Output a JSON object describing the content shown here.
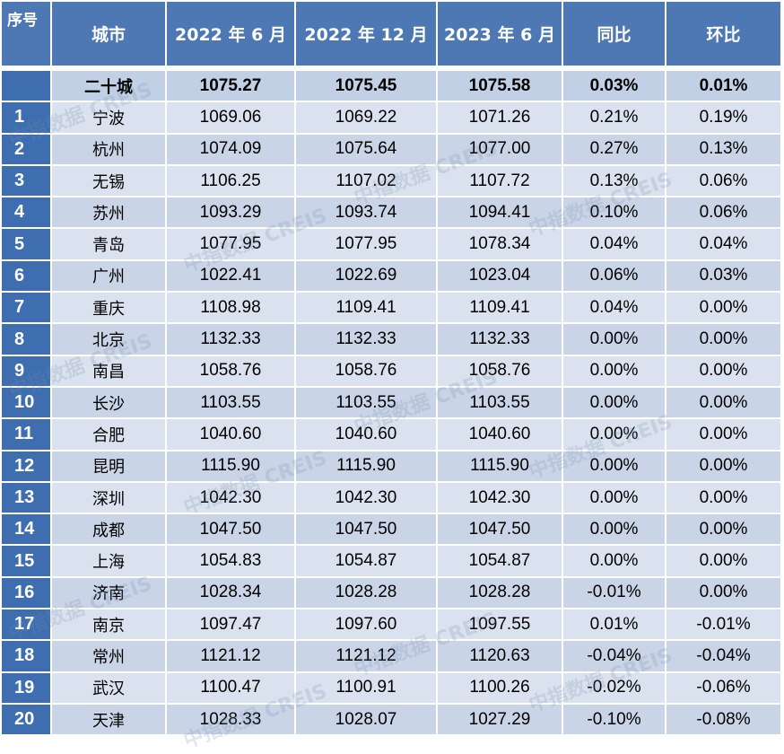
{
  "headers": [
    "序号",
    "城市",
    "2022 年 6 月",
    "2022 年 12 月",
    "2023 年 6 月",
    "同比",
    "环比"
  ],
  "total": {
    "index": "",
    "city": "二十城",
    "v1": "1075.27",
    "v2": "1075.45",
    "v3": "1075.58",
    "yoy": "0.03%",
    "mom": "0.01%"
  },
  "rows": [
    {
      "index": "1",
      "city": "宁波",
      "v1": "1069.06",
      "v2": "1069.22",
      "v3": "1071.26",
      "yoy": "0.21%",
      "mom": "0.19%"
    },
    {
      "index": "2",
      "city": "杭州",
      "v1": "1074.09",
      "v2": "1075.64",
      "v3": "1077.00",
      "yoy": "0.27%",
      "mom": "0.13%"
    },
    {
      "index": "3",
      "city": "无锡",
      "v1": "1106.25",
      "v2": "1107.02",
      "v3": "1107.72",
      "yoy": "0.13%",
      "mom": "0.06%"
    },
    {
      "index": "4",
      "city": "苏州",
      "v1": "1093.29",
      "v2": "1093.74",
      "v3": "1094.41",
      "yoy": "0.10%",
      "mom": "0.06%"
    },
    {
      "index": "5",
      "city": "青岛",
      "v1": "1077.95",
      "v2": "1077.95",
      "v3": "1078.34",
      "yoy": "0.04%",
      "mom": "0.04%"
    },
    {
      "index": "6",
      "city": "广州",
      "v1": "1022.41",
      "v2": "1022.69",
      "v3": "1023.04",
      "yoy": "0.06%",
      "mom": "0.03%"
    },
    {
      "index": "7",
      "city": "重庆",
      "v1": "1108.98",
      "v2": "1109.41",
      "v3": "1109.41",
      "yoy": "0.04%",
      "mom": "0.00%"
    },
    {
      "index": "8",
      "city": "北京",
      "v1": "1132.33",
      "v2": "1132.33",
      "v3": "1132.33",
      "yoy": "0.00%",
      "mom": "0.00%"
    },
    {
      "index": "9",
      "city": "南昌",
      "v1": "1058.76",
      "v2": "1058.76",
      "v3": "1058.76",
      "yoy": "0.00%",
      "mom": "0.00%"
    },
    {
      "index": "10",
      "city": "长沙",
      "v1": "1103.55",
      "v2": "1103.55",
      "v3": "1103.55",
      "yoy": "0.00%",
      "mom": "0.00%"
    },
    {
      "index": "11",
      "city": "合肥",
      "v1": "1040.60",
      "v2": "1040.60",
      "v3": "1040.60",
      "yoy": "0.00%",
      "mom": "0.00%"
    },
    {
      "index": "12",
      "city": "昆明",
      "v1": "1115.90",
      "v2": "1115.90",
      "v3": "1115.90",
      "yoy": "0.00%",
      "mom": "0.00%"
    },
    {
      "index": "13",
      "city": "深圳",
      "v1": "1042.30",
      "v2": "1042.30",
      "v3": "1042.30",
      "yoy": "0.00%",
      "mom": "0.00%"
    },
    {
      "index": "14",
      "city": "成都",
      "v1": "1047.50",
      "v2": "1047.50",
      "v3": "1047.50",
      "yoy": "0.00%",
      "mom": "0.00%"
    },
    {
      "index": "15",
      "city": "上海",
      "v1": "1054.83",
      "v2": "1054.87",
      "v3": "1054.87",
      "yoy": "0.00%",
      "mom": "0.00%"
    },
    {
      "index": "16",
      "city": "济南",
      "v1": "1028.34",
      "v2": "1028.28",
      "v3": "1028.28",
      "yoy": "-0.01%",
      "mom": "0.00%"
    },
    {
      "index": "17",
      "city": "南京",
      "v1": "1097.47",
      "v2": "1097.60",
      "v3": "1097.55",
      "yoy": "0.01%",
      "mom": "-0.01%"
    },
    {
      "index": "18",
      "city": "常州",
      "v1": "1121.12",
      "v2": "1121.12",
      "v3": "1120.63",
      "yoy": "-0.04%",
      "mom": "-0.04%"
    },
    {
      "index": "19",
      "city": "武汉",
      "v1": "1100.47",
      "v2": "1100.91",
      "v3": "1100.26",
      "yoy": "-0.02%",
      "mom": "-0.06%"
    },
    {
      "index": "20",
      "city": "天津",
      "v1": "1028.33",
      "v2": "1028.07",
      "v3": "1027.29",
      "yoy": "-0.10%",
      "mom": "-0.08%"
    }
  ],
  "watermark": "中指数据 CREIS"
}
